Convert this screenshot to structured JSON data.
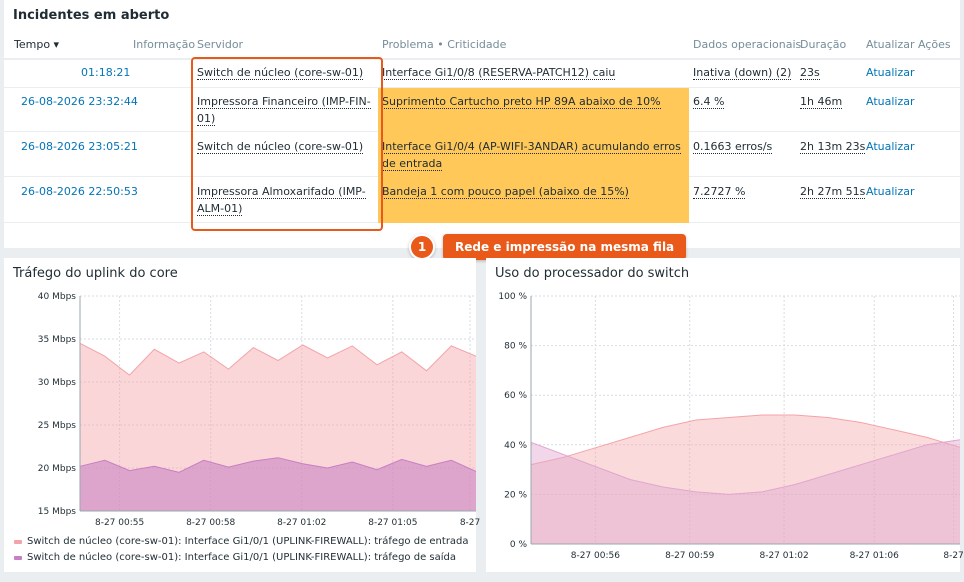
{
  "problems": {
    "title": "Incidentes em aberto",
    "columns": {
      "time": "Tempo ▾",
      "info": "Informação",
      "host": "Servidor",
      "problem": "Problema • Criticidade",
      "opdata": "Dados operacionais",
      "duration": "Duração",
      "update": "Atualizar",
      "actions": "Ações"
    },
    "rows": [
      {
        "time": "01:18:21",
        "host": "Switch de núcleo (core-sw-01)",
        "problem": "Interface Gi1/0/8 (RESERVA-PATCH12) caiu",
        "opdata": "Inativa (down) (2)",
        "duration": "23s",
        "update": "Atualizar",
        "severity_color": "#ffffff"
      },
      {
        "time": "26-08-2026 23:32:44",
        "host": "Impressora Financeiro (IMP-FIN-01)",
        "problem": "Suprimento Cartucho preto HP 89A abaixo de 10%",
        "opdata": "6.4 %",
        "duration": "1h 46m",
        "update": "Atualizar",
        "severity_color": "#ffc859"
      },
      {
        "time": "26-08-2026 23:05:21",
        "host": "Switch de núcleo (core-sw-01)",
        "problem": "Interface Gi1/0/4 (AP-WIFI-3ANDAR) acumulando erros de entrada",
        "opdata": "0.1663 erros/s",
        "duration": "2h 13m 23s",
        "update": "Atualizar",
        "severity_color": "#ffc859"
      },
      {
        "time": "26-08-2026 22:50:53",
        "host": "Impressora Almoxarifado (IMP-ALM-01)",
        "problem": "Bandeja 1 com pouco papel (abaixo de 15%)",
        "opdata": "7.2727 %",
        "duration": "2h 27m 51s",
        "update": "Atualizar",
        "severity_color": "#ffc859"
      }
    ]
  },
  "callout": {
    "number": "1",
    "label": "Rede e impressão na mesma fila",
    "color": "#e8591a"
  },
  "traffic_graph": {
    "title": "Tráfego do uplink do core",
    "legend": [
      {
        "label": "Switch de núcleo (core-sw-01): Interface Gi1/0/1 (UPLINK-FIREWALL): tráfego de entrada",
        "color": "#f4a3a8"
      },
      {
        "label": "Switch de núcleo (core-sw-01): Interface Gi1/0/1 (UPLINK-FIREWALL): tráfego de saída",
        "color": "#c77ec2"
      }
    ]
  },
  "cpu_graph": {
    "title": "Uso do processador do switch"
  },
  "chart_data": [
    {
      "type": "area",
      "title": "Tráfego do uplink do core",
      "ylim": [
        15,
        40
      ],
      "y_ticks": [
        "15 Mbps",
        "20 Mbps",
        "25 Mbps",
        "30 Mbps",
        "35 Mbps",
        "40 Mbps"
      ],
      "x_ticks": [
        "8-27 00:55",
        "8-27 00:58",
        "8-27 01:02",
        "8-27 01:05",
        "8-27"
      ],
      "grid": true,
      "legend_position": "bottom",
      "series": [
        {
          "name": "Switch de núcleo (core-sw-01): Interface Gi1/0/1 (UPLINK-FIREWALL): tráfego de entrada",
          "color": "#f4a3a8",
          "values": [
            34.5,
            33.0,
            30.8,
            33.8,
            32.2,
            33.5,
            31.5,
            34.0,
            32.5,
            34.3,
            32.8,
            34.2,
            32.0,
            33.5,
            31.3,
            34.2,
            33.0
          ]
        },
        {
          "name": "Switch de núcleo (core-sw-01): Interface Gi1/0/1 (UPLINK-FIREWALL): tráfego de saída",
          "color": "#c77ec2",
          "values": [
            20.2,
            20.9,
            19.7,
            20.2,
            19.5,
            20.9,
            20.1,
            20.8,
            21.2,
            20.5,
            20.0,
            20.7,
            19.8,
            21.0,
            20.2,
            20.9,
            19.6
          ]
        }
      ]
    },
    {
      "type": "area",
      "title": "Uso do processador do switch",
      "ylim": [
        0,
        100
      ],
      "y_ticks": [
        "0 %",
        "20 %",
        "40 %",
        "60 %",
        "80 %",
        "100 %"
      ],
      "x_ticks": [
        "8-27 00:56",
        "8-27 00:59",
        "8-27 01:02",
        "8-27 01:06",
        "8-27"
      ],
      "grid": true,
      "series": [
        {
          "name": "",
          "color": "#f4a3a8",
          "values": [
            32,
            35,
            39,
            43,
            47,
            50,
            51,
            52,
            52,
            51,
            49,
            46,
            43,
            39
          ]
        },
        {
          "name": "",
          "color": "#e0a6cf",
          "values": [
            41,
            36,
            31,
            26,
            23,
            21,
            20,
            21,
            24,
            28,
            32,
            36,
            40,
            42
          ]
        }
      ]
    }
  ]
}
